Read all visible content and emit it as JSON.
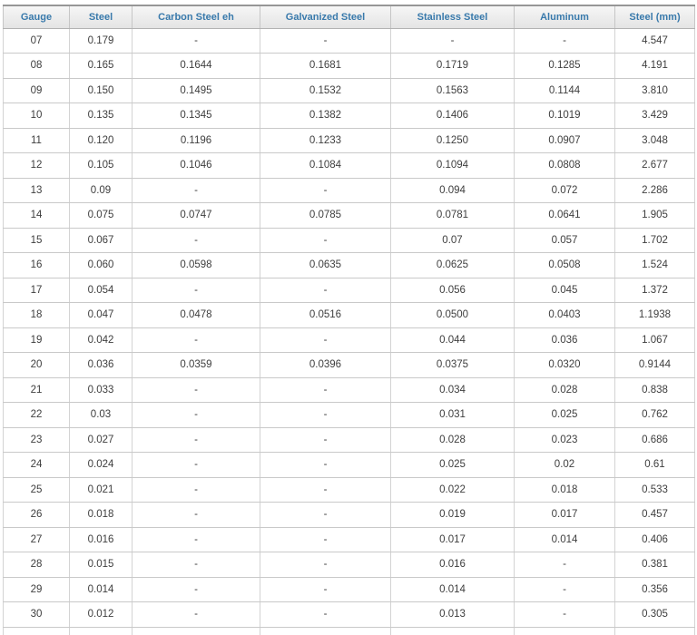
{
  "chart_data": {
    "type": "table",
    "title": "",
    "columns": [
      "Gauge",
      "Steel",
      "Carbon Steel eh",
      "Galvanized Steel",
      "Stainless Steel",
      "Aluminum",
      "Steel (mm)"
    ],
    "rows": [
      [
        "07",
        "0.179",
        "-",
        "-",
        "-",
        "-",
        "4.547"
      ],
      [
        "08",
        "0.165",
        "0.1644",
        "0.1681",
        "0.1719",
        "0.1285",
        "4.191"
      ],
      [
        "09",
        "0.150",
        "0.1495",
        "0.1532",
        "0.1563",
        "0.1144",
        "3.810"
      ],
      [
        "10",
        "0.135",
        "0.1345",
        "0.1382",
        "0.1406",
        "0.1019",
        "3.429"
      ],
      [
        "11",
        "0.120",
        "0.1196",
        "0.1233",
        "0.1250",
        "0.0907",
        "3.048"
      ],
      [
        "12",
        "0.105",
        "0.1046",
        "0.1084",
        "0.1094",
        "0.0808",
        "2.677"
      ],
      [
        "13",
        "0.09",
        "-",
        "-",
        "0.094",
        "0.072",
        "2.286"
      ],
      [
        "14",
        "0.075",
        "0.0747",
        "0.0785",
        "0.0781",
        "0.0641",
        "1.905"
      ],
      [
        "15",
        "0.067",
        "-",
        "-",
        "0.07",
        "0.057",
        "1.702"
      ],
      [
        "16",
        "0.060",
        "0.0598",
        "0.0635",
        "0.0625",
        "0.0508",
        "1.524"
      ],
      [
        "17",
        "0.054",
        "-",
        "-",
        "0.056",
        "0.045",
        "1.372"
      ],
      [
        "18",
        "0.047",
        "0.0478",
        "0.0516",
        "0.0500",
        "0.0403",
        "1.1938"
      ],
      [
        "19",
        "0.042",
        "-",
        "-",
        "0.044",
        "0.036",
        "1.067"
      ],
      [
        "20",
        "0.036",
        "0.0359",
        "0.0396",
        "0.0375",
        "0.0320",
        "0.9144"
      ],
      [
        "21",
        "0.033",
        "-",
        "-",
        "0.034",
        "0.028",
        "0.838"
      ],
      [
        "22",
        "0.03",
        "-",
        "-",
        "0.031",
        "0.025",
        "0.762"
      ],
      [
        "23",
        "0.027",
        "-",
        "-",
        "0.028",
        "0.023",
        "0.686"
      ],
      [
        "24",
        "0.024",
        "-",
        "-",
        "0.025",
        "0.02",
        "0.61"
      ],
      [
        "25",
        "0.021",
        "-",
        "-",
        "0.022",
        "0.018",
        "0.533"
      ],
      [
        "26",
        "0.018",
        "-",
        "-",
        "0.019",
        "0.017",
        "0.457"
      ],
      [
        "27",
        "0.016",
        "-",
        "-",
        "0.017",
        "0.014",
        "0.406"
      ],
      [
        "28",
        "0.015",
        "-",
        "-",
        "0.016",
        "-",
        "0.381"
      ],
      [
        "29",
        "0.014",
        "-",
        "-",
        "0.014",
        "-",
        "0.356"
      ],
      [
        "30",
        "0.012",
        "-",
        "-",
        "0.013",
        "-",
        "0.305"
      ]
    ],
    "layout": {
      "grid": true,
      "header_position": "top",
      "cell_alignment": "center"
    }
  },
  "colors": {
    "header_text": "#3879ab",
    "header_bg_top": "#f6f6f6",
    "header_bg_bottom": "#e4e4e4",
    "header_top_border": "#969696",
    "grid_border": "#d3d3d3",
    "cell_text": "#3e3e3e",
    "background": "#ffffff"
  }
}
